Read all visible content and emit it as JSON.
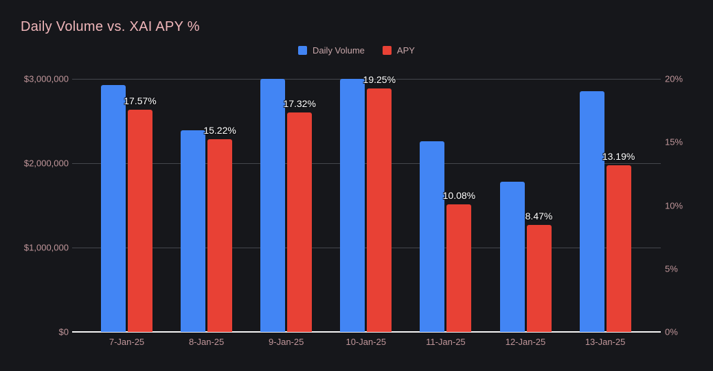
{
  "colors": {
    "background": "#16171b",
    "title_text": "#f0b6ba",
    "axis_tick_text": "#c0969a",
    "legend_text": "#c8a6a9",
    "gridline": "#45484e",
    "axis_line": "#f5f5f5",
    "volume_bar": "#4285f4",
    "apy_bar": "#e84135",
    "data_label": "#ffffff"
  },
  "chart_data": {
    "type": "bar",
    "title": "Daily Volume vs. XAI APY %",
    "categories": [
      "7-Jan-25",
      "8-Jan-25",
      "9-Jan-25",
      "10-Jan-25",
      "11-Jan-25",
      "12-Jan-25",
      "13-Jan-25"
    ],
    "series": [
      {
        "name": "Daily Volume",
        "axis": "left",
        "color": "#4285f4",
        "values": [
          2930000,
          2390000,
          3000000,
          3000000,
          2260000,
          1780000,
          2850000
        ]
      },
      {
        "name": "APY",
        "axis": "right",
        "color": "#e84135",
        "values": [
          17.57,
          15.22,
          17.32,
          19.25,
          10.08,
          8.47,
          13.19
        ],
        "data_labels": [
          "17.57%",
          "15.22%",
          "17.32%",
          "19.25%",
          "10.08%",
          "8.47%",
          "13.19%"
        ]
      }
    ],
    "left_axis": {
      "min": 0,
      "max": 3000000,
      "ticks": [
        {
          "label": "$0",
          "value": 0
        },
        {
          "label": "$1,000,000",
          "value": 1000000
        },
        {
          "label": "$2,000,000",
          "value": 2000000
        },
        {
          "label": "$3,000,000",
          "value": 3000000
        }
      ]
    },
    "right_axis": {
      "min": 0,
      "max": 20,
      "ticks": [
        {
          "label": "0%",
          "value": 0
        },
        {
          "label": "5%",
          "value": 5
        },
        {
          "label": "10%",
          "value": 10
        },
        {
          "label": "15%",
          "value": 15
        },
        {
          "label": "20%",
          "value": 20
        }
      ]
    },
    "grid": "horizontal",
    "legend_position": "top-center"
  }
}
